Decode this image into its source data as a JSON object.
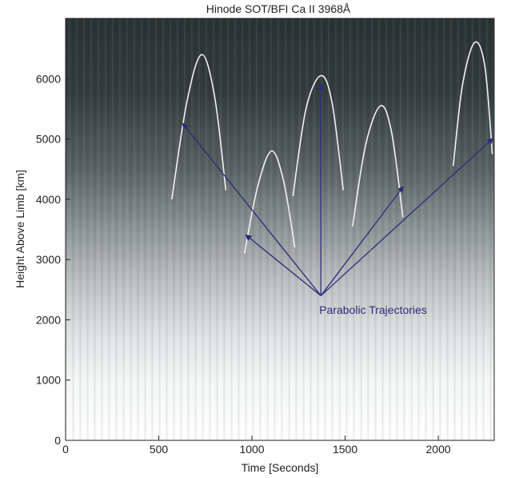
{
  "chart_data": {
    "type": "line",
    "title": "Hinode SOT/BFI  Ca II 3968Å",
    "xlabel": "Time [Seconds]",
    "ylabel": "Height Above Limb [km]",
    "xlim": [
      0,
      2300
    ],
    "ylim": [
      0,
      7000
    ],
    "x_ticks": [
      0,
      500,
      1000,
      1500,
      2000
    ],
    "y_ticks": [
      0,
      1000,
      2000,
      3000,
      4000,
      5000,
      6000
    ],
    "background": "time-distance image, grayscale: dark near top, bright near limb",
    "grid": false,
    "series": [
      {
        "name": "",
        "x": [
          570,
          650,
          730,
          800,
          860
        ],
        "y": [
          4000,
          5600,
          6400,
          5700,
          4150
        ]
      },
      {
        "name": "",
        "x": [
          960,
          1030,
          1105,
          1170,
          1230
        ],
        "y": [
          3100,
          4200,
          4800,
          4300,
          3200
        ]
      },
      {
        "name": "",
        "x": [
          1220,
          1290,
          1370,
          1430,
          1490
        ],
        "y": [
          4050,
          5500,
          6050,
          5600,
          4150
        ]
      },
      {
        "name": "",
        "x": [
          1540,
          1610,
          1690,
          1750,
          1810
        ],
        "y": [
          3550,
          4900,
          5550,
          5100,
          3700
        ]
      },
      {
        "name": "",
        "x": [
          2080,
          2130,
          2195,
          2250,
          2290
        ],
        "y": [
          4550,
          5900,
          6600,
          6200,
          4750
        ]
      }
    ],
    "annotation": {
      "text": "Parabolic Trajectories",
      "text_x": 1650,
      "text_y": 2100,
      "origin_x": 1370,
      "origin_y": 2400,
      "arrow_targets": [
        {
          "x": 630,
          "y": 5250
        },
        {
          "x": 970,
          "y": 3400
        },
        {
          "x": 1370,
          "y": 5900
        },
        {
          "x": 1810,
          "y": 4200
        },
        {
          "x": 2290,
          "y": 5000
        }
      ]
    },
    "colors": {
      "trajectory": "#f2f2f2",
      "annotation": "#2c2c7a",
      "axis": "#222222",
      "image_dark": "#2a3333",
      "image_mid": "#7a8484",
      "image_light": "#ffffff"
    }
  }
}
